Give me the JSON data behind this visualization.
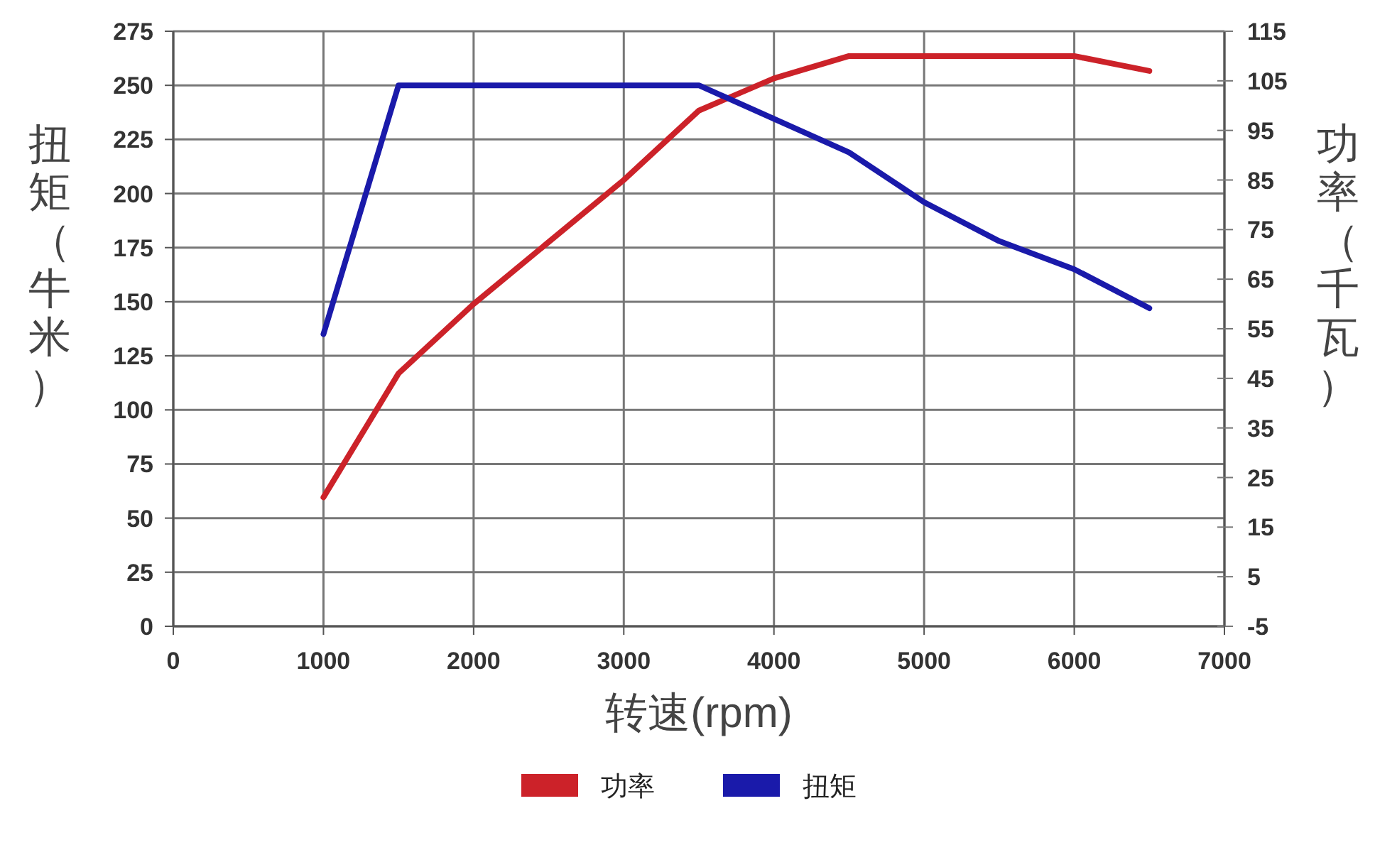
{
  "chart_data": {
    "type": "line",
    "xlabel": "转速(rpm)",
    "ylabel": "扭矩（牛米）",
    "y2label": "功率（千瓦）",
    "x": [
      1000,
      1500,
      2000,
      3000,
      3500,
      4000,
      4500,
      5000,
      5500,
      6000,
      6500
    ],
    "series": [
      {
        "name": "功率",
        "color": "#cc2229",
        "axis": "y2",
        "values": [
          21,
          46,
          60,
          85,
          99,
          105.5,
          110,
          110,
          110,
          110,
          107
        ]
      },
      {
        "name": "扭矩",
        "color": "#1a1aaa",
        "x": [
          1000,
          1500,
          3500,
          4500,
          5000,
          5500,
          6000,
          6500
        ],
        "values": [
          135,
          250,
          250,
          219,
          196,
          178,
          165,
          147
        ]
      }
    ],
    "xlim": [
      0,
      7000
    ],
    "xticks": [
      0,
      1000,
      2000,
      3000,
      4000,
      5000,
      6000,
      7000
    ],
    "ylim": [
      0,
      275
    ],
    "yticks": [
      0,
      25,
      50,
      75,
      100,
      125,
      150,
      175,
      200,
      225,
      250,
      275
    ],
    "y2lim": [
      -5,
      115
    ],
    "y2ticks": [
      -5,
      5,
      15,
      25,
      35,
      45,
      55,
      65,
      75,
      85,
      95,
      105,
      115
    ],
    "grid": true,
    "legend": "bottom",
    "line_style": "solid",
    "marker": "none"
  }
}
